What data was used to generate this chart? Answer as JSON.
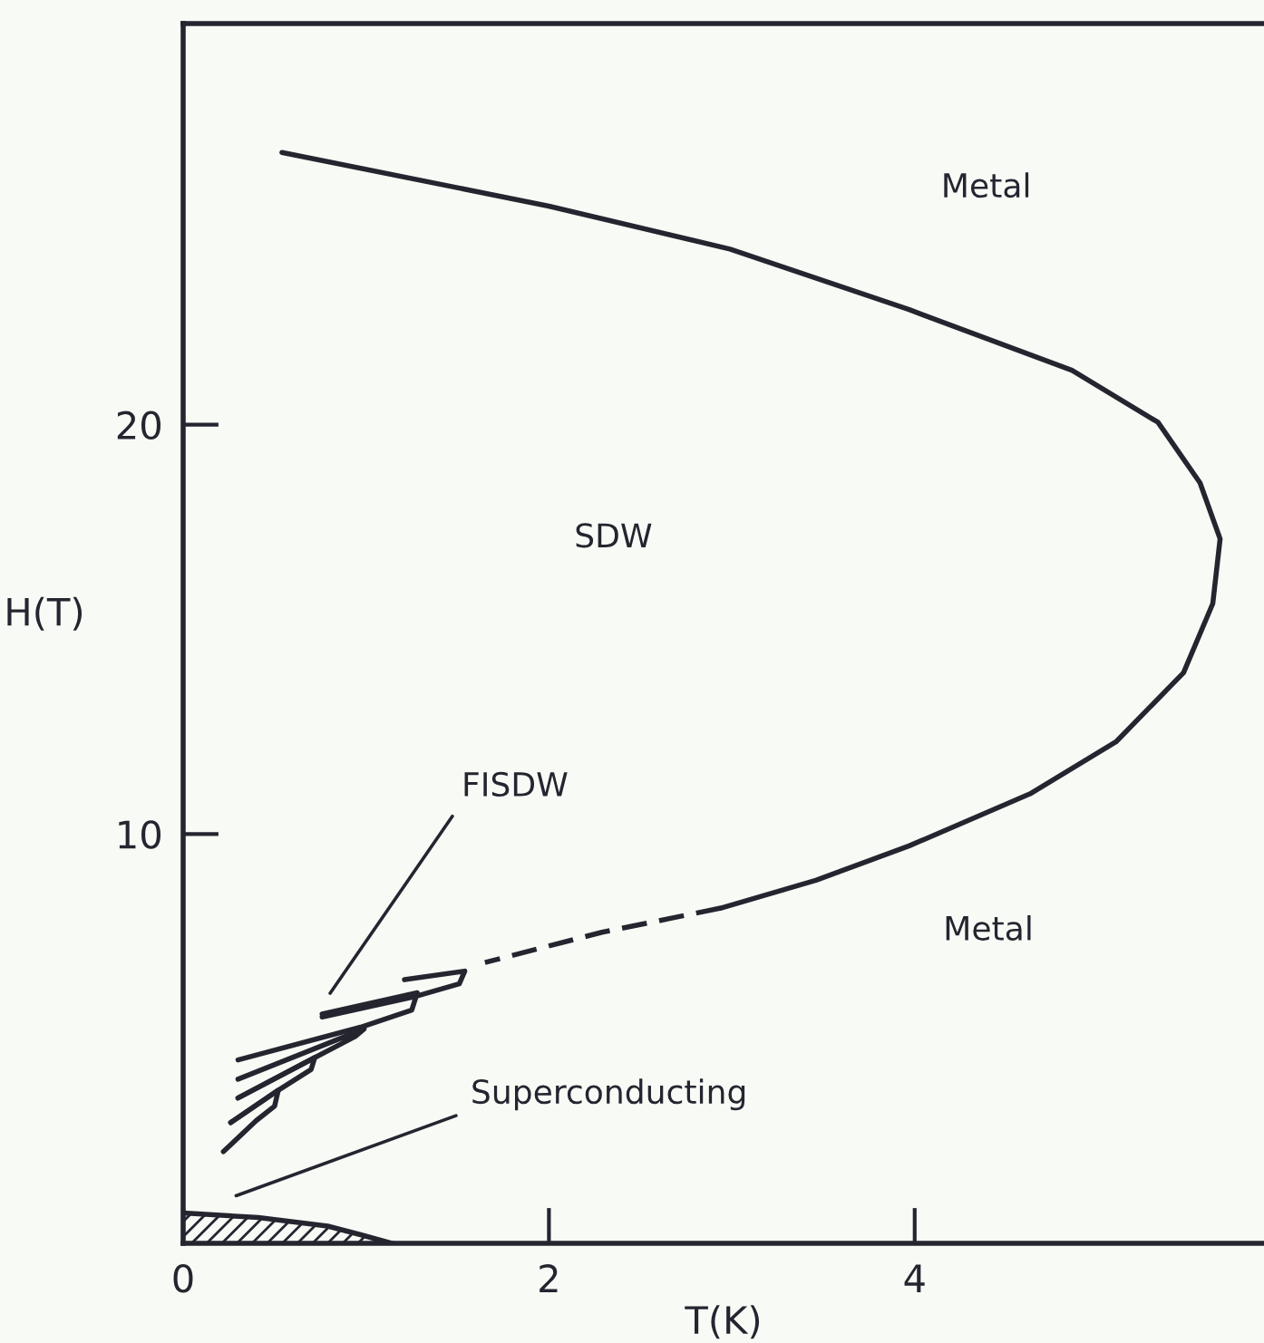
{
  "chart_data": {
    "type": "line",
    "xlabel": "T(K)",
    "ylabel": "H(T)",
    "xlim": [
      0,
      5.91
    ],
    "ylim": [
      0,
      29.8
    ],
    "xticks": [
      0,
      2,
      4
    ],
    "yticks": [
      10,
      20
    ],
    "grid": false,
    "legend": false,
    "marker": "none",
    "series": [
      {
        "color": "#252530",
        "line_style": "solid",
        "x": [
          0.54,
          2.0,
          2.99,
          3.97,
          4.86,
          5.33,
          5.56,
          5.67,
          5.63,
          5.47,
          5.1,
          4.63,
          3.97,
          3.46,
          2.94
        ],
        "values": [
          26.65,
          25.34,
          24.29,
          22.81,
          21.33,
          20.06,
          18.58,
          17.21,
          15.63,
          13.94,
          12.25,
          10.98,
          9.71,
          8.87,
          8.19
        ]
      },
      {
        "color": "#252530",
        "line_style": "dashed",
        "x": [
          2.94,
          2.29,
          1.65
        ],
        "values": [
          8.19,
          7.6,
          6.86
        ]
      },
      {
        "color": "#252530",
        "line_style": "solid",
        "x": [
          1.21,
          1.54,
          1.51,
          1.26,
          0.76
        ],
        "values": [
          6.44,
          6.65,
          6.34,
          6.02,
          5.53
        ]
      },
      {
        "color": "#252530",
        "line_style": "solid",
        "x": [
          0.76,
          1.28,
          1.25,
          0.97,
          0.3
        ],
        "values": [
          5.6,
          6.12,
          5.7,
          5.28,
          4.48
        ]
      },
      {
        "color": "#252530",
        "line_style": "solid",
        "x": [
          0.3,
          0.99,
          0.94,
          0.72,
          0.3
        ],
        "values": [
          4.01,
          5.24,
          5.05,
          4.54,
          3.55
        ]
      },
      {
        "color": "#252530",
        "line_style": "solid",
        "x": [
          0.3,
          0.72,
          0.7,
          0.52,
          0.26
        ],
        "values": [
          3.55,
          4.54,
          4.25,
          3.74,
          2.95
        ]
      },
      {
        "color": "#252530",
        "line_style": "solid",
        "x": [
          0.26,
          0.52,
          0.5,
          0.4,
          0.22
        ],
        "values": [
          2.95,
          3.74,
          3.35,
          3.0,
          2.24
        ]
      },
      {
        "type": "area",
        "color": "#252530",
        "x": [
          0,
          0.41,
          0.79,
          0.97,
          1.14
        ],
        "values": [
          0.74,
          0.63,
          0.42,
          0.21,
          0
        ]
      }
    ],
    "annotations": [
      "Metal",
      "SDW",
      "Metal",
      "FISDW",
      "Superconducting"
    ]
  }
}
